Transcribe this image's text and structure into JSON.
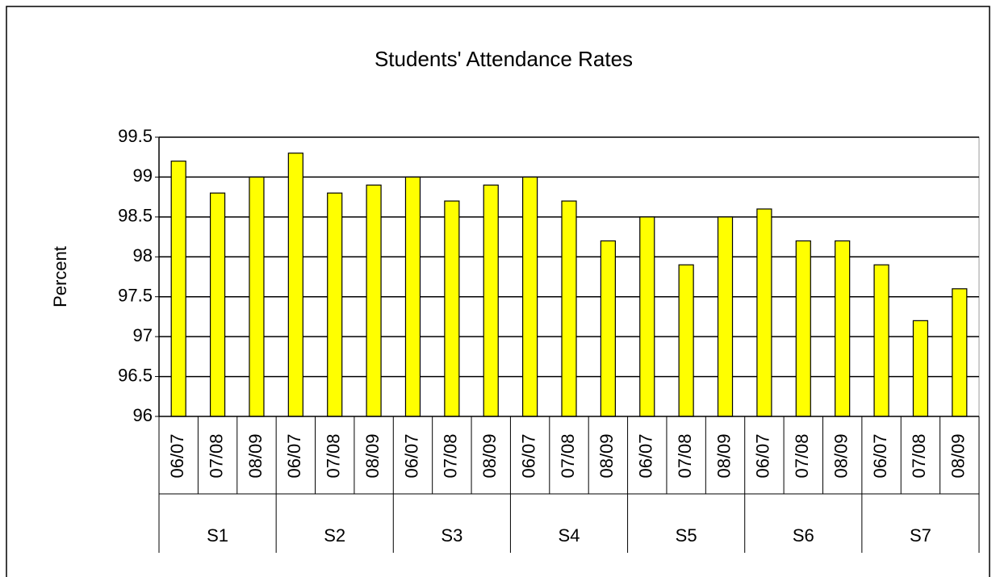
{
  "chart_data": {
    "type": "bar",
    "title": "Students' Attendance Rates",
    "y_label": "Percent",
    "categories": [
      "06/07",
      "07/08",
      "08/09",
      "06/07",
      "07/08",
      "08/09",
      "06/07",
      "07/08",
      "08/09",
      "06/07",
      "07/08",
      "08/09",
      "06/07",
      "07/08",
      "08/09",
      "06/07",
      "07/08",
      "08/09",
      "06/07",
      "07/08",
      "08/09"
    ],
    "groups": [
      "S1",
      "S2",
      "S3",
      "S4",
      "S5",
      "S6",
      "S7"
    ],
    "values": [
      99.2,
      98.8,
      99.0,
      99.3,
      98.8,
      98.9,
      99.0,
      98.7,
      98.9,
      99.0,
      98.7,
      98.2,
      98.5,
      97.9,
      98.5,
      98.6,
      98.2,
      98.2,
      97.9,
      97.2,
      97.6
    ],
    "color": "#ffff00",
    "ylim": [
      96,
      99.5
    ],
    "yticks": [
      96,
      96.5,
      97,
      97.5,
      98,
      98.5,
      99,
      99.5
    ],
    "grid": true
  }
}
